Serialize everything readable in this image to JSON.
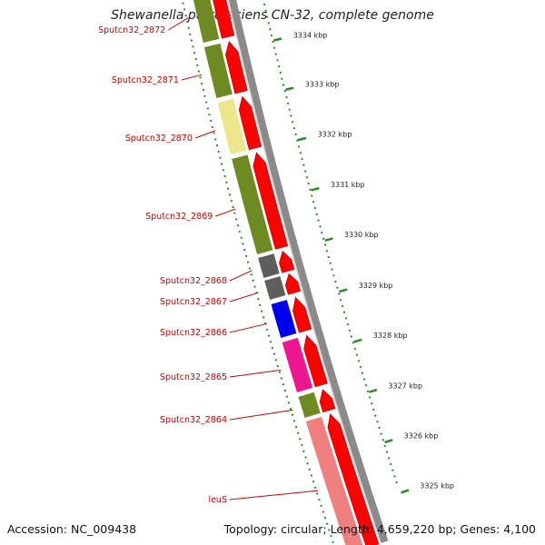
{
  "title": "Shewanella putrefaciens CN-32, complete genome",
  "accession": "Accession: NC_009438",
  "summary": "Topology: circular; Length: 4,659,220 bp; Genes: 4,100",
  "colors": {
    "label_red": "#cc0000",
    "tick_green": "#2a8a2a",
    "backbone_gray": "#8a8a8a",
    "cds_arrow": "#ff0000",
    "olive": "#6e8b23",
    "khaki": "#eee68c",
    "gray": "#5e5e5e",
    "blue": "#0000ee",
    "magenta": "#ee1590",
    "salmon": "#f08080"
  },
  "ticks": [
    {
      "label": "3334 kbp"
    },
    {
      "label": "3333 kbp"
    },
    {
      "label": "3332 kbp"
    },
    {
      "label": "3331 kbp"
    },
    {
      "label": "3330 kbp"
    },
    {
      "label": "3329 kbp"
    },
    {
      "label": "3328 kbp"
    },
    {
      "label": "3327 kbp"
    },
    {
      "label": "3326 kbp"
    },
    {
      "label": "3325 kbp"
    }
  ],
  "genes": [
    {
      "name": "Sputcn32_2872",
      "cog_color": "olive"
    },
    {
      "name": "Sputcn32_2871",
      "cog_color": "olive"
    },
    {
      "name": "Sputcn32_2870",
      "cog_color": "khaki"
    },
    {
      "name": "Sputcn32_2869",
      "cog_color": "olive"
    },
    {
      "name": "Sputcn32_2868",
      "cog_color": "gray"
    },
    {
      "name": "Sputcn32_2867",
      "cog_color": "gray"
    },
    {
      "name": "Sputcn32_2866",
      "cog_color": "blue"
    },
    {
      "name": "Sputcn32_2865",
      "cog_color": "magenta"
    },
    {
      "name": "Sputcn32_2864",
      "cog_color": "olive"
    },
    {
      "name": "leuS",
      "cog_color": "salmon"
    }
  ]
}
